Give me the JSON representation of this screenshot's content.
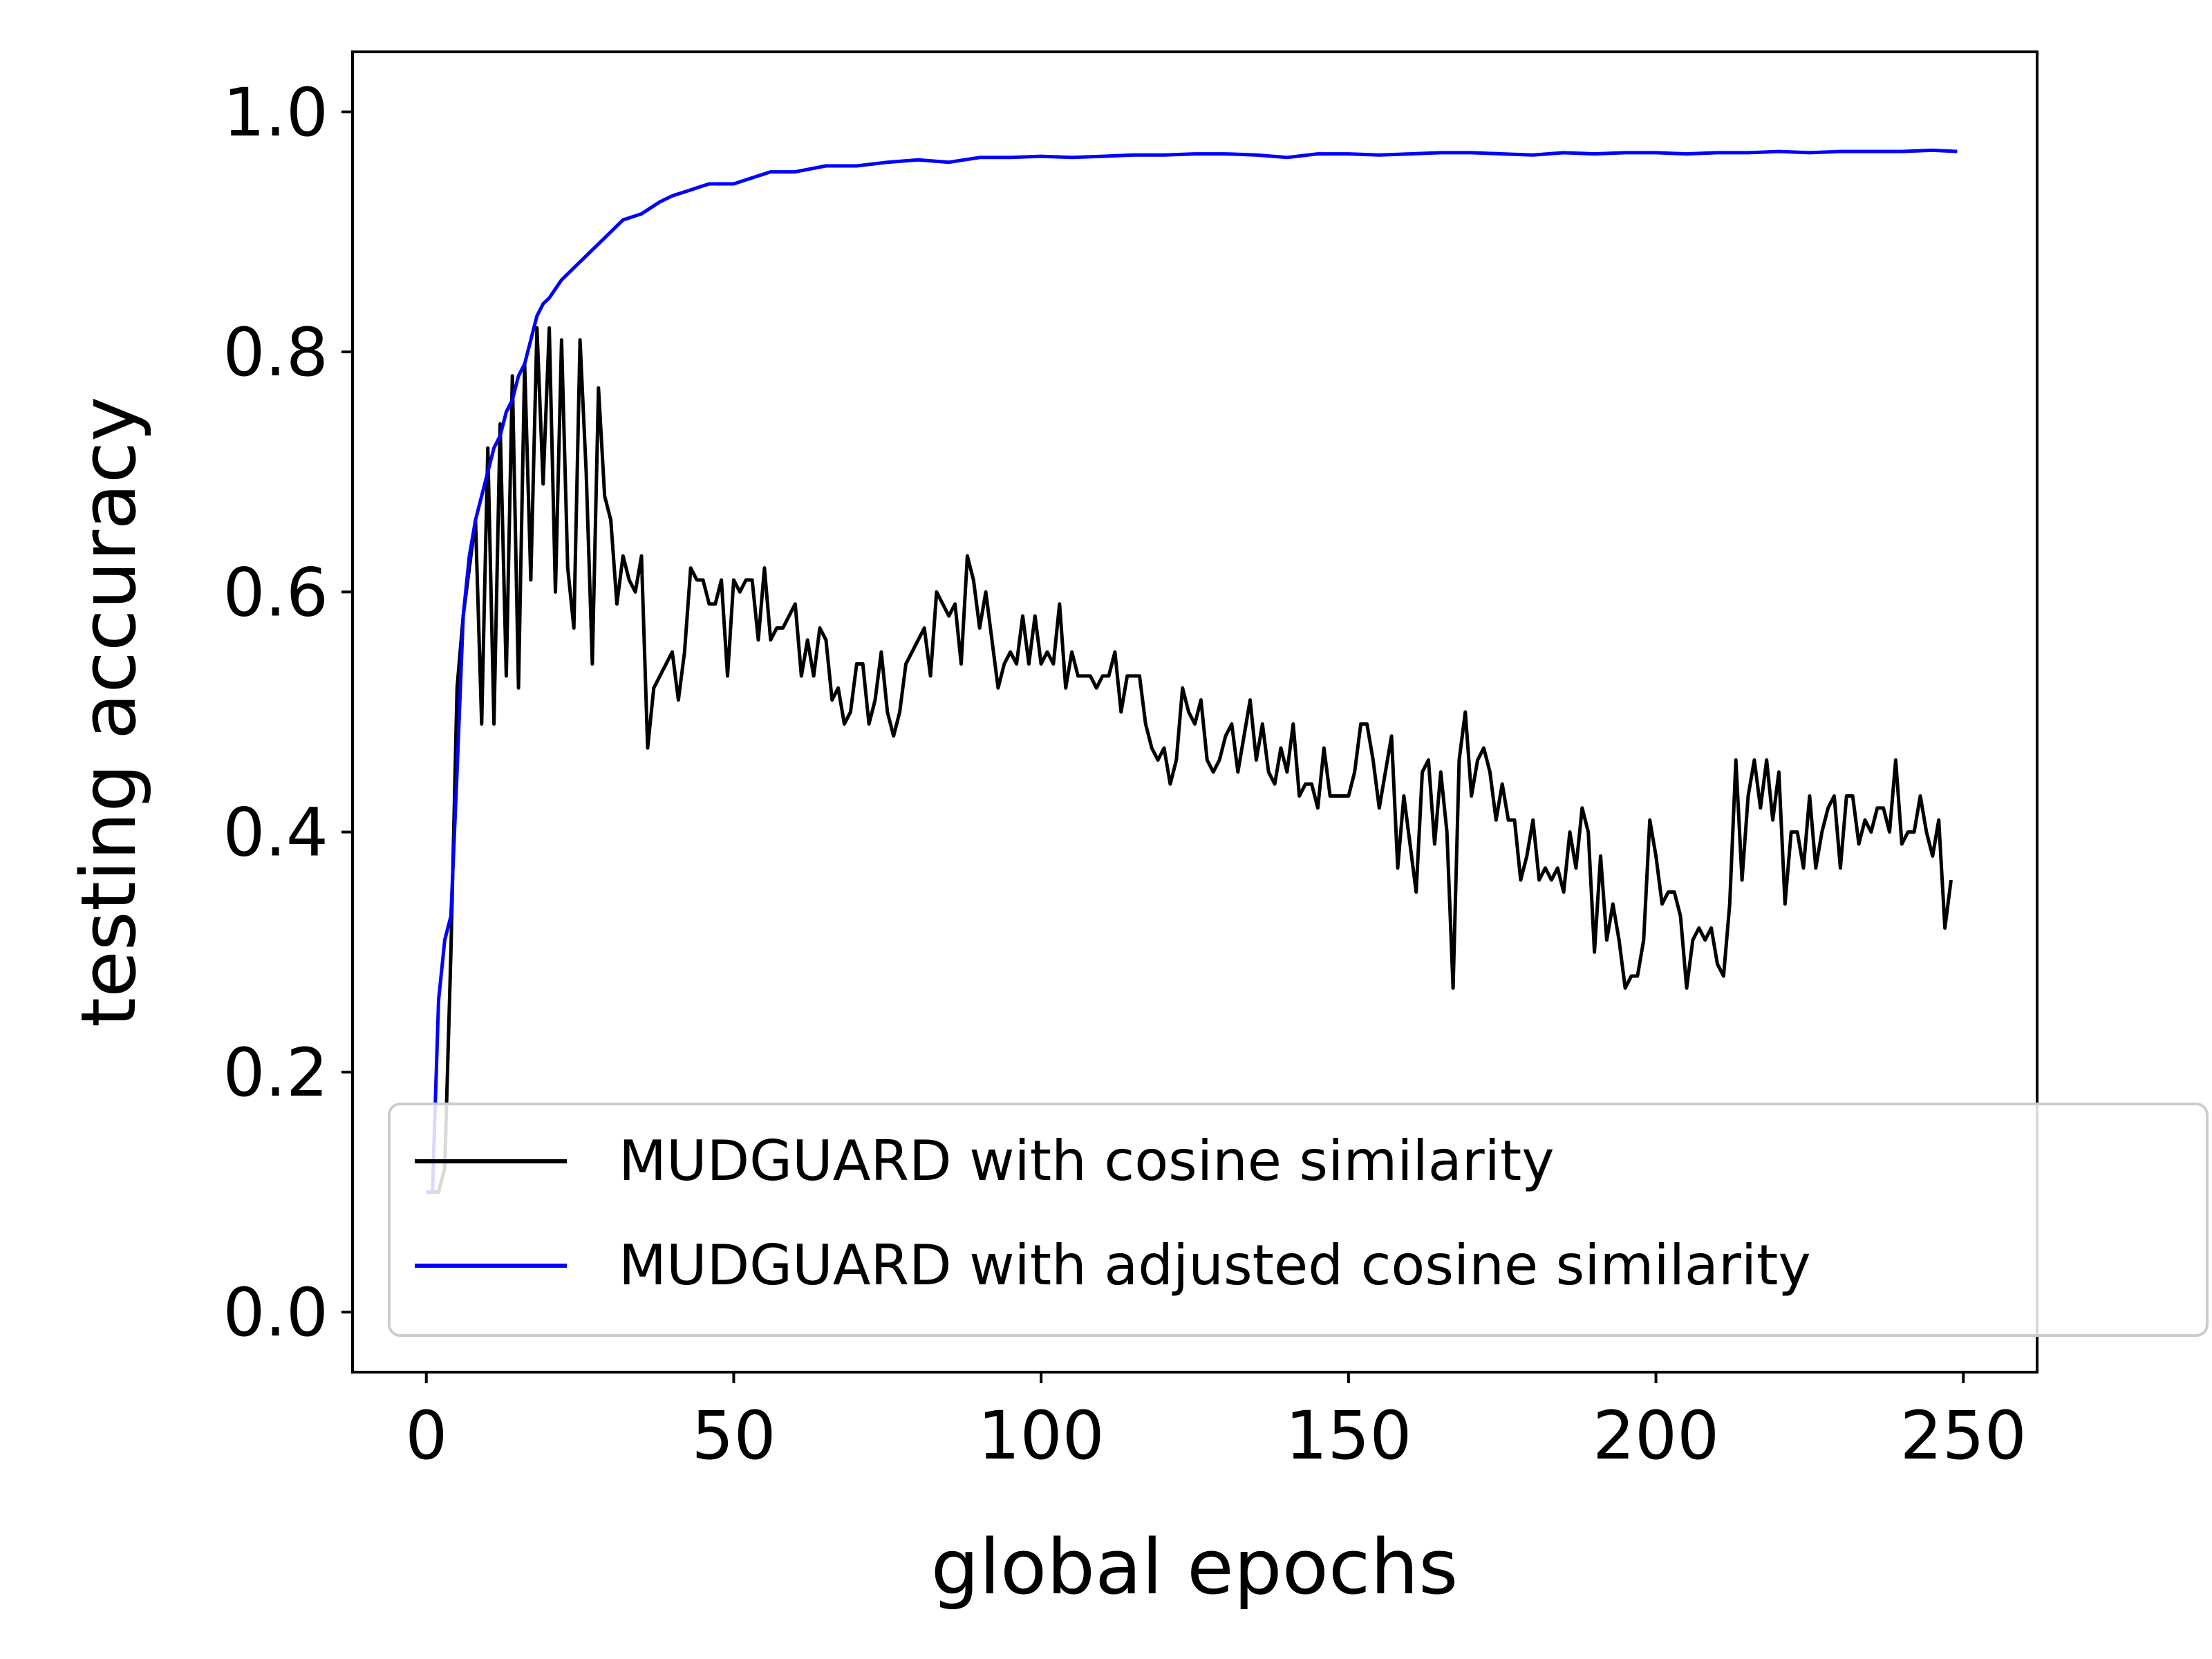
{
  "chart_data": {
    "type": "line",
    "title": "",
    "xlabel": "global epochs",
    "ylabel": "testing accuracy",
    "xlim": [
      -12,
      262
    ],
    "ylim": [
      -0.05,
      1.05
    ],
    "xticks": [
      0,
      50,
      100,
      150,
      200,
      250
    ],
    "yticks": [
      0.0,
      0.2,
      0.4,
      0.6,
      0.8,
      1.0
    ],
    "xtick_labels": [
      "0",
      "50",
      "100",
      "150",
      "200",
      "250"
    ],
    "ytick_labels": [
      "0.0",
      "0.2",
      "0.4",
      "0.6",
      "0.8",
      "1.0"
    ],
    "grid": false,
    "legend_position": "bottom-right",
    "series": [
      {
        "name": "MUDGUARD with cosine similarity",
        "color": "#000000",
        "points": [
          [
            0,
            0.1
          ],
          [
            1,
            0.1
          ],
          [
            2,
            0.1
          ],
          [
            3,
            0.12
          ],
          [
            4,
            0.3
          ],
          [
            5,
            0.52
          ],
          [
            6,
            0.58
          ],
          [
            7,
            0.62
          ],
          [
            8,
            0.66
          ],
          [
            9,
            0.49
          ],
          [
            10,
            0.72
          ],
          [
            11,
            0.49
          ],
          [
            12,
            0.74
          ],
          [
            13,
            0.53
          ],
          [
            14,
            0.78
          ],
          [
            15,
            0.52
          ],
          [
            16,
            0.79
          ],
          [
            17,
            0.61
          ],
          [
            18,
            0.82
          ],
          [
            19,
            0.69
          ],
          [
            20,
            0.82
          ],
          [
            21,
            0.6
          ],
          [
            22,
            0.81
          ],
          [
            23,
            0.62
          ],
          [
            24,
            0.57
          ],
          [
            25,
            0.81
          ],
          [
            26,
            0.7
          ],
          [
            27,
            0.54
          ],
          [
            28,
            0.77
          ],
          [
            29,
            0.68
          ],
          [
            30,
            0.66
          ],
          [
            31,
            0.59
          ],
          [
            32,
            0.63
          ],
          [
            33,
            0.61
          ],
          [
            34,
            0.6
          ],
          [
            35,
            0.63
          ],
          [
            36,
            0.47
          ],
          [
            37,
            0.52
          ],
          [
            38,
            0.53
          ],
          [
            39,
            0.54
          ],
          [
            40,
            0.55
          ],
          [
            41,
            0.51
          ],
          [
            42,
            0.55
          ],
          [
            43,
            0.62
          ],
          [
            44,
            0.61
          ],
          [
            45,
            0.61
          ],
          [
            46,
            0.59
          ],
          [
            47,
            0.59
          ],
          [
            48,
            0.61
          ],
          [
            49,
            0.53
          ],
          [
            50,
            0.61
          ],
          [
            51,
            0.6
          ],
          [
            52,
            0.61
          ],
          [
            53,
            0.61
          ],
          [
            54,
            0.56
          ],
          [
            55,
            0.62
          ],
          [
            56,
            0.56
          ],
          [
            57,
            0.57
          ],
          [
            58,
            0.57
          ],
          [
            59,
            0.58
          ],
          [
            60,
            0.59
          ],
          [
            61,
            0.53
          ],
          [
            62,
            0.56
          ],
          [
            63,
            0.53
          ],
          [
            64,
            0.57
          ],
          [
            65,
            0.56
          ],
          [
            66,
            0.51
          ],
          [
            67,
            0.52
          ],
          [
            68,
            0.49
          ],
          [
            69,
            0.5
          ],
          [
            70,
            0.54
          ],
          [
            71,
            0.54
          ],
          [
            72,
            0.49
          ],
          [
            73,
            0.51
          ],
          [
            74,
            0.55
          ],
          [
            75,
            0.5
          ],
          [
            76,
            0.48
          ],
          [
            77,
            0.5
          ],
          [
            78,
            0.54
          ],
          [
            79,
            0.55
          ],
          [
            80,
            0.56
          ],
          [
            81,
            0.57
          ],
          [
            82,
            0.53
          ],
          [
            83,
            0.6
          ],
          [
            84,
            0.59
          ],
          [
            85,
            0.58
          ],
          [
            86,
            0.59
          ],
          [
            87,
            0.54
          ],
          [
            88,
            0.63
          ],
          [
            89,
            0.61
          ],
          [
            90,
            0.57
          ],
          [
            91,
            0.6
          ],
          [
            92,
            0.56
          ],
          [
            93,
            0.52
          ],
          [
            94,
            0.54
          ],
          [
            95,
            0.55
          ],
          [
            96,
            0.54
          ],
          [
            97,
            0.58
          ],
          [
            98,
            0.54
          ],
          [
            99,
            0.58
          ],
          [
            100,
            0.54
          ],
          [
            101,
            0.55
          ],
          [
            102,
            0.54
          ],
          [
            103,
            0.59
          ],
          [
            104,
            0.52
          ],
          [
            105,
            0.55
          ],
          [
            106,
            0.53
          ],
          [
            107,
            0.53
          ],
          [
            108,
            0.53
          ],
          [
            109,
            0.52
          ],
          [
            110,
            0.53
          ],
          [
            111,
            0.53
          ],
          [
            112,
            0.55
          ],
          [
            113,
            0.5
          ],
          [
            114,
            0.53
          ],
          [
            115,
            0.53
          ],
          [
            116,
            0.53
          ],
          [
            117,
            0.49
          ],
          [
            118,
            0.47
          ],
          [
            119,
            0.46
          ],
          [
            120,
            0.47
          ],
          [
            121,
            0.44
          ],
          [
            122,
            0.46
          ],
          [
            123,
            0.52
          ],
          [
            124,
            0.5
          ],
          [
            125,
            0.49
          ],
          [
            126,
            0.51
          ],
          [
            127,
            0.46
          ],
          [
            128,
            0.45
          ],
          [
            129,
            0.46
          ],
          [
            130,
            0.48
          ],
          [
            131,
            0.49
          ],
          [
            132,
            0.45
          ],
          [
            133,
            0.48
          ],
          [
            134,
            0.51
          ],
          [
            135,
            0.46
          ],
          [
            136,
            0.49
          ],
          [
            137,
            0.45
          ],
          [
            138,
            0.44
          ],
          [
            139,
            0.47
          ],
          [
            140,
            0.45
          ],
          [
            141,
            0.49
          ],
          [
            142,
            0.43
          ],
          [
            143,
            0.44
          ],
          [
            144,
            0.44
          ],
          [
            145,
            0.42
          ],
          [
            146,
            0.47
          ],
          [
            147,
            0.43
          ],
          [
            148,
            0.43
          ],
          [
            149,
            0.43
          ],
          [
            150,
            0.43
          ],
          [
            151,
            0.45
          ],
          [
            152,
            0.49
          ],
          [
            153,
            0.49
          ],
          [
            154,
            0.46
          ],
          [
            155,
            0.42
          ],
          [
            156,
            0.45
          ],
          [
            157,
            0.48
          ],
          [
            158,
            0.37
          ],
          [
            159,
            0.43
          ],
          [
            160,
            0.39
          ],
          [
            161,
            0.35
          ],
          [
            162,
            0.45
          ],
          [
            163,
            0.46
          ],
          [
            164,
            0.39
          ],
          [
            165,
            0.45
          ],
          [
            166,
            0.4
          ],
          [
            167,
            0.27
          ],
          [
            168,
            0.46
          ],
          [
            169,
            0.5
          ],
          [
            170,
            0.43
          ],
          [
            171,
            0.46
          ],
          [
            172,
            0.47
          ],
          [
            173,
            0.45
          ],
          [
            174,
            0.41
          ],
          [
            175,
            0.44
          ],
          [
            176,
            0.41
          ],
          [
            177,
            0.41
          ],
          [
            178,
            0.36
          ],
          [
            179,
            0.38
          ],
          [
            180,
            0.41
          ],
          [
            181,
            0.36
          ],
          [
            182,
            0.37
          ],
          [
            183,
            0.36
          ],
          [
            184,
            0.37
          ],
          [
            185,
            0.35
          ],
          [
            186,
            0.4
          ],
          [
            187,
            0.37
          ],
          [
            188,
            0.42
          ],
          [
            189,
            0.4
          ],
          [
            190,
            0.3
          ],
          [
            191,
            0.38
          ],
          [
            192,
            0.31
          ],
          [
            193,
            0.34
          ],
          [
            194,
            0.31
          ],
          [
            195,
            0.27
          ],
          [
            196,
            0.28
          ],
          [
            197,
            0.28
          ],
          [
            198,
            0.31
          ],
          [
            199,
            0.41
          ],
          [
            200,
            0.38
          ],
          [
            201,
            0.34
          ],
          [
            202,
            0.35
          ],
          [
            203,
            0.35
          ],
          [
            204,
            0.33
          ],
          [
            205,
            0.27
          ],
          [
            206,
            0.31
          ],
          [
            207,
            0.32
          ],
          [
            208,
            0.31
          ],
          [
            209,
            0.32
          ],
          [
            210,
            0.29
          ],
          [
            211,
            0.28
          ],
          [
            212,
            0.34
          ],
          [
            213,
            0.46
          ],
          [
            214,
            0.36
          ],
          [
            215,
            0.43
          ],
          [
            216,
            0.46
          ],
          [
            217,
            0.42
          ],
          [
            218,
            0.46
          ],
          [
            219,
            0.41
          ],
          [
            220,
            0.45
          ],
          [
            221,
            0.34
          ],
          [
            222,
            0.4
          ],
          [
            223,
            0.4
          ],
          [
            224,
            0.37
          ],
          [
            225,
            0.43
          ],
          [
            226,
            0.37
          ],
          [
            227,
            0.4
          ],
          [
            228,
            0.42
          ],
          [
            229,
            0.43
          ],
          [
            230,
            0.37
          ],
          [
            231,
            0.43
          ],
          [
            232,
            0.43
          ],
          [
            233,
            0.39
          ],
          [
            234,
            0.41
          ],
          [
            235,
            0.4
          ],
          [
            236,
            0.42
          ],
          [
            237,
            0.42
          ],
          [
            238,
            0.4
          ],
          [
            239,
            0.46
          ],
          [
            240,
            0.39
          ],
          [
            241,
            0.4
          ],
          [
            242,
            0.4
          ],
          [
            243,
            0.43
          ],
          [
            244,
            0.4
          ],
          [
            245,
            0.38
          ],
          [
            246,
            0.41
          ],
          [
            247,
            0.32
          ],
          [
            248,
            0.36
          ]
        ]
      },
      {
        "name": "MUDGUARD with adjusted cosine similarity",
        "color": "#0000ff",
        "points": [
          [
            0,
            0.1
          ],
          [
            1,
            0.1
          ],
          [
            2,
            0.26
          ],
          [
            3,
            0.31
          ],
          [
            4,
            0.33
          ],
          [
            5,
            0.45
          ],
          [
            6,
            0.58
          ],
          [
            7,
            0.63
          ],
          [
            8,
            0.66
          ],
          [
            9,
            0.68
          ],
          [
            10,
            0.7
          ],
          [
            11,
            0.72
          ],
          [
            12,
            0.73
          ],
          [
            13,
            0.75
          ],
          [
            14,
            0.76
          ],
          [
            15,
            0.78
          ],
          [
            16,
            0.79
          ],
          [
            17,
            0.81
          ],
          [
            18,
            0.83
          ],
          [
            19,
            0.84
          ],
          [
            20,
            0.845
          ],
          [
            22,
            0.86
          ],
          [
            24,
            0.87
          ],
          [
            26,
            0.88
          ],
          [
            28,
            0.89
          ],
          [
            30,
            0.9
          ],
          [
            32,
            0.91
          ],
          [
            35,
            0.915
          ],
          [
            38,
            0.925
          ],
          [
            40,
            0.93
          ],
          [
            43,
            0.935
          ],
          [
            46,
            0.94
          ],
          [
            50,
            0.94
          ],
          [
            53,
            0.945
          ],
          [
            56,
            0.95
          ],
          [
            60,
            0.95
          ],
          [
            65,
            0.955
          ],
          [
            70,
            0.955
          ],
          [
            75,
            0.958
          ],
          [
            80,
            0.96
          ],
          [
            85,
            0.958
          ],
          [
            90,
            0.962
          ],
          [
            95,
            0.962
          ],
          [
            100,
            0.963
          ],
          [
            105,
            0.962
          ],
          [
            110,
            0.963
          ],
          [
            115,
            0.964
          ],
          [
            120,
            0.964
          ],
          [
            125,
            0.965
          ],
          [
            130,
            0.965
          ],
          [
            135,
            0.964
          ],
          [
            140,
            0.962
          ],
          [
            145,
            0.965
          ],
          [
            150,
            0.965
          ],
          [
            155,
            0.964
          ],
          [
            160,
            0.965
          ],
          [
            165,
            0.966
          ],
          [
            170,
            0.966
          ],
          [
            175,
            0.965
          ],
          [
            180,
            0.964
          ],
          [
            185,
            0.966
          ],
          [
            190,
            0.965
          ],
          [
            195,
            0.966
          ],
          [
            200,
            0.966
          ],
          [
            205,
            0.965
          ],
          [
            210,
            0.966
          ],
          [
            215,
            0.966
          ],
          [
            220,
            0.967
          ],
          [
            225,
            0.966
          ],
          [
            230,
            0.967
          ],
          [
            235,
            0.967
          ],
          [
            240,
            0.967
          ],
          [
            245,
            0.968
          ],
          [
            249,
            0.967
          ]
        ]
      }
    ]
  }
}
